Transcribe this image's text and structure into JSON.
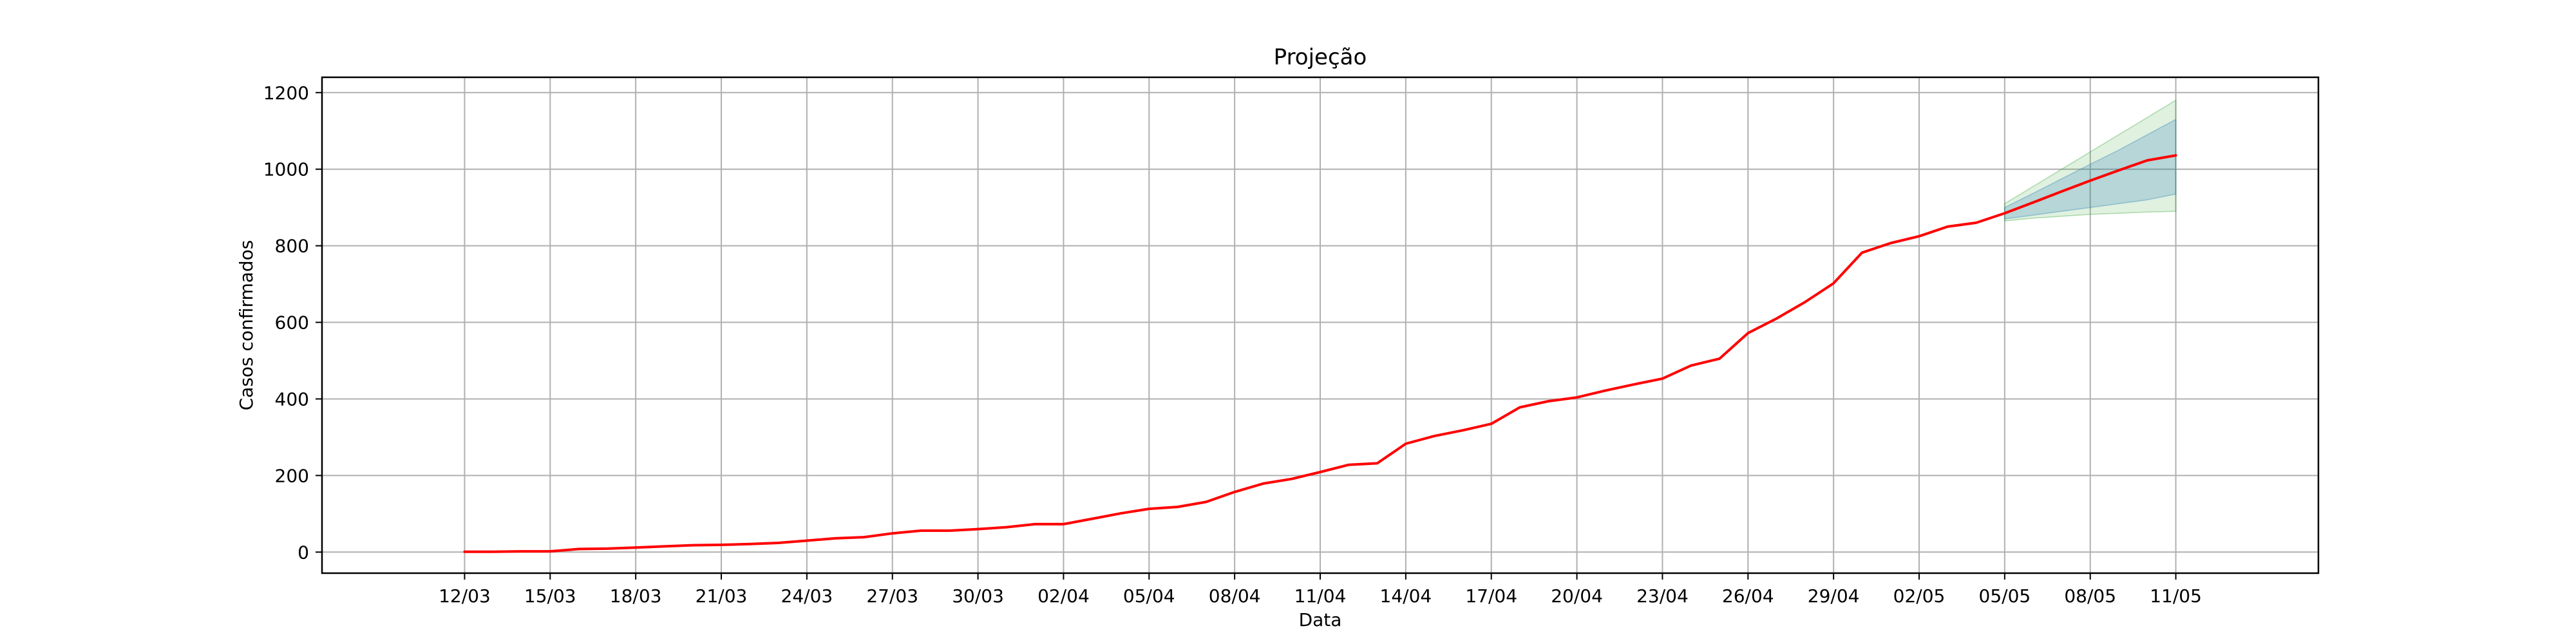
{
  "chart_data": {
    "type": "line",
    "title": "Projeção",
    "xlabel": "Data",
    "ylabel": "Casos confirmados",
    "grid": true,
    "ylim": [
      -55,
      1240
    ],
    "x_tick_labels": [
      "12/03",
      "15/03",
      "18/03",
      "21/03",
      "24/03",
      "27/03",
      "30/03",
      "02/04",
      "05/04",
      "08/04",
      "11/04",
      "14/04",
      "17/04",
      "20/04",
      "23/04",
      "26/04",
      "29/04",
      "02/05",
      "05/05",
      "08/05",
      "11/05"
    ],
    "y_ticks": [
      0,
      200,
      400,
      600,
      800,
      1000,
      1200
    ],
    "x_range": [
      "07/03",
      "16/05"
    ],
    "series": [
      {
        "color": "#ff0000",
        "x": [
          "12/03",
          "13/03",
          "14/03",
          "15/03",
          "16/03",
          "17/03",
          "18/03",
          "19/03",
          "20/03",
          "21/03",
          "22/03",
          "23/03",
          "24/03",
          "25/03",
          "26/03",
          "27/03",
          "28/03",
          "29/03",
          "30/03",
          "31/03",
          "01/04",
          "02/04",
          "03/04",
          "04/04",
          "05/04",
          "06/04",
          "07/04",
          "08/04",
          "09/04",
          "10/04",
          "11/04",
          "12/04",
          "13/04",
          "14/04",
          "15/04",
          "16/04",
          "17/04",
          "18/04",
          "19/04",
          "20/04",
          "21/04",
          "22/04",
          "23/04",
          "24/04",
          "25/04",
          "26/04",
          "27/04",
          "28/04",
          "29/04",
          "30/04",
          "01/05",
          "02/05",
          "03/05",
          "04/05",
          "05/05",
          "06/05",
          "07/05",
          "08/05",
          "09/05",
          "10/05",
          "11/05"
        ],
        "y": [
          1,
          1,
          2,
          2,
          8,
          9,
          12,
          15,
          18,
          19,
          21,
          24,
          30,
          36,
          39,
          49,
          56,
          56,
          60,
          65,
          73,
          73,
          87,
          101,
          113,
          118,
          131,
          157,
          179,
          191,
          209,
          228,
          232,
          283,
          303,
          318,
          335,
          378,
          394,
          404,
          422,
          438,
          453,
          487,
          505,
          572,
          610,
          653,
          702,
          782,
          807,
          825,
          850,
          860,
          885,
          913,
          942,
          970,
          997,
          1023,
          1036
        ]
      }
    ],
    "bands": [
      {
        "color": "#2ca02c",
        "opacity": 0.15,
        "x": [
          "05/05",
          "06/05",
          "07/05",
          "08/05",
          "09/05",
          "10/05",
          "11/05"
        ],
        "lower": [
          865,
          872,
          877,
          882,
          885,
          888,
          890
        ],
        "upper": [
          910,
          955,
          1000,
          1045,
          1090,
          1135,
          1180
        ]
      },
      {
        "color": "#1f77b4",
        "opacity": 0.22,
        "x": [
          "05/05",
          "06/05",
          "07/05",
          "08/05",
          "09/05",
          "10/05",
          "11/05"
        ],
        "lower": [
          870,
          880,
          890,
          900,
          910,
          920,
          935
        ],
        "upper": [
          900,
          937,
          975,
          1013,
          1050,
          1090,
          1130
        ]
      }
    ]
  }
}
